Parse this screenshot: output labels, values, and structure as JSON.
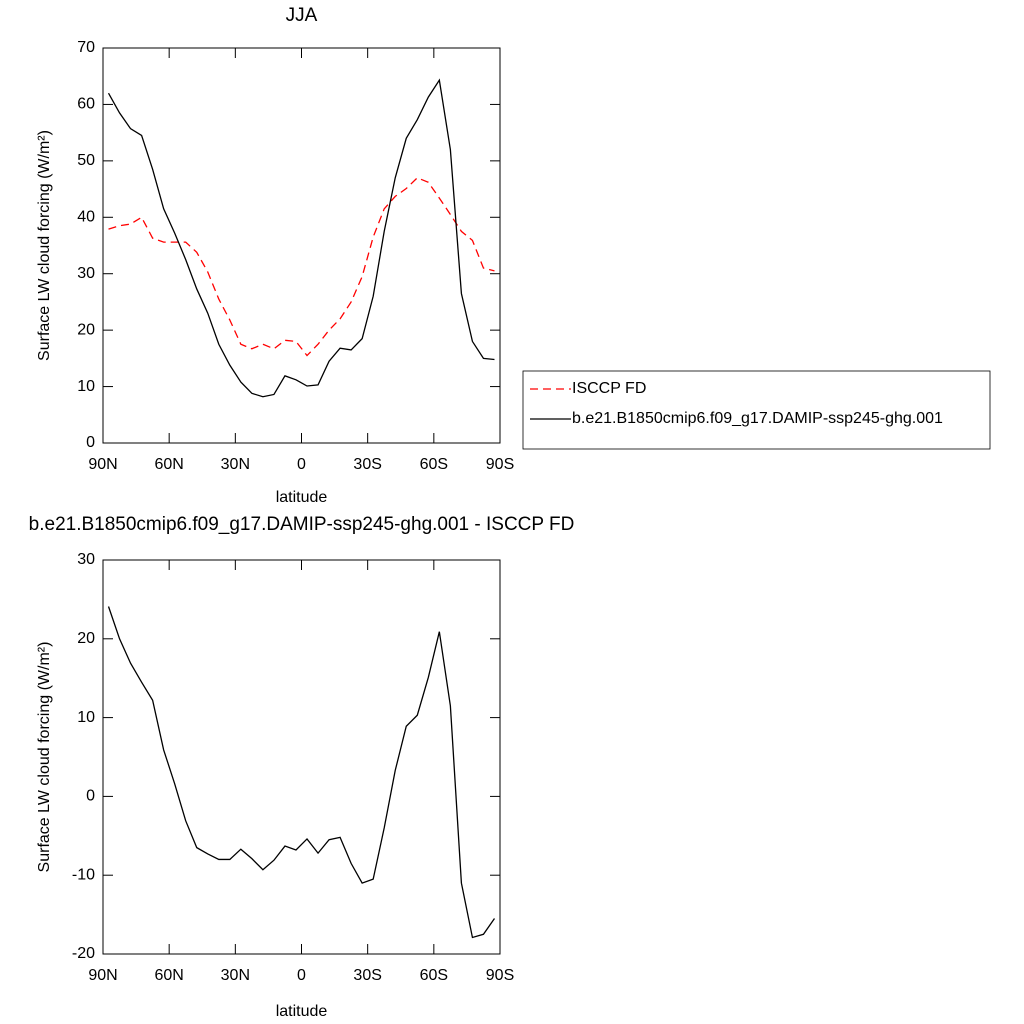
{
  "chart_data": [
    {
      "type": "line",
      "title": "JJA",
      "xlabel": "latitude",
      "ylabel": "Surface LW cloud forcing (W/m²)",
      "x": [
        87.5,
        82.5,
        77.5,
        72.5,
        67.5,
        62.5,
        57.5,
        52.5,
        47.5,
        42.5,
        37.5,
        32.5,
        27.5,
        22.5,
        17.5,
        12.5,
        7.5,
        2.5,
        -2.5,
        -7.5,
        -12.5,
        -17.5,
        -22.5,
        -27.5,
        -32.5,
        -37.5,
        -42.5,
        -47.5,
        -52.5,
        -57.5,
        -62.5,
        -67.5,
        -72.5,
        -77.5,
        -82.5,
        -87.5
      ],
      "series": [
        {
          "name": "ISCCP FD",
          "color": "#ff0000",
          "line_style": "dashed",
          "values": [
            37.9,
            38.5,
            38.8,
            40,
            36.3,
            35.6,
            35.6,
            35.6,
            33.8,
            30.3,
            25.5,
            21.8,
            17.5,
            16.7,
            17.5,
            16.7,
            18.2,
            18,
            15.5,
            17.5,
            20,
            22,
            25,
            29.5,
            36.5,
            41.5,
            43.7,
            45.1,
            47,
            46.2,
            43.4,
            40.5,
            37.5,
            35.9,
            31,
            30.5
          ]
        },
        {
          "name": "b.e21.B1850cmip6.f09_g17.DAMIP-ssp245-ghg.001",
          "color": "#000000",
          "line_style": "solid",
          "values": [
            62,
            58.5,
            55.7,
            54.5,
            48.5,
            41.5,
            37.2,
            32.5,
            27.3,
            23,
            17.5,
            13.8,
            10.8,
            8.8,
            8.2,
            8.6,
            11.9,
            11.2,
            10.1,
            10.3,
            14.5,
            16.8,
            16.5,
            18.5,
            26,
            37.5,
            47,
            54,
            57.3,
            61.3,
            64.3,
            52,
            26.5,
            18,
            15,
            14.8
          ]
        }
      ],
      "xlim": [
        90,
        -90
      ],
      "xticks": [
        {
          "value": 90,
          "label": "90N"
        },
        {
          "value": 60,
          "label": "60N"
        },
        {
          "value": 30,
          "label": "30N"
        },
        0,
        {
          "value": -30,
          "label": "30S"
        },
        {
          "value": -60,
          "label": "60S"
        },
        {
          "value": -90,
          "label": "90S"
        }
      ],
      "ylim": [
        0,
        70
      ],
      "yticks": [
        0,
        10,
        20,
        30,
        40,
        50,
        60,
        70
      ],
      "legend": "right"
    },
    {
      "type": "line",
      "title": "b.e21.B1850cmip6.f09_g17.DAMIP-ssp245-ghg.001 - ISCCP FD",
      "xlabel": "latitude",
      "ylabel": "Surface LW cloud forcing (W/m²)",
      "x": [
        87.5,
        82.5,
        77.5,
        72.5,
        67.5,
        62.5,
        57.5,
        52.5,
        47.5,
        42.5,
        37.5,
        32.5,
        27.5,
        22.5,
        17.5,
        12.5,
        7.5,
        2.5,
        -2.5,
        -7.5,
        -12.5,
        -17.5,
        -22.5,
        -27.5,
        -32.5,
        -37.5,
        -42.5,
        -47.5,
        -52.5,
        -57.5,
        -62.5,
        -67.5,
        -72.5,
        -77.5,
        -82.5,
        -87.5
      ],
      "values": [
        24.1,
        20,
        16.9,
        14.5,
        12.2,
        5.9,
        1.6,
        -3.1,
        -6.5,
        -7.3,
        -8,
        -8,
        -6.7,
        -7.9,
        -9.3,
        -8.1,
        -6.3,
        -6.8,
        -5.4,
        -7.2,
        -5.5,
        -5.2,
        -8.5,
        -11,
        -10.5,
        -4,
        3.3,
        8.9,
        10.3,
        15.1,
        20.9,
        11.5,
        -11,
        -17.9,
        -17.5,
        -15.5
      ],
      "color": "#000000",
      "xlim": [
        90,
        -90
      ],
      "xticks": [
        {
          "value": 90,
          "label": "90N"
        },
        {
          "value": 60,
          "label": "60N"
        },
        {
          "value": 30,
          "label": "30N"
        },
        0,
        {
          "value": -30,
          "label": "30S"
        },
        {
          "value": -60,
          "label": "60S"
        },
        {
          "value": -90,
          "label": "90S"
        }
      ],
      "ylim": [
        -20,
        30
      ],
      "yticks": [
        -20,
        -10,
        0,
        10,
        20,
        30
      ]
    }
  ]
}
